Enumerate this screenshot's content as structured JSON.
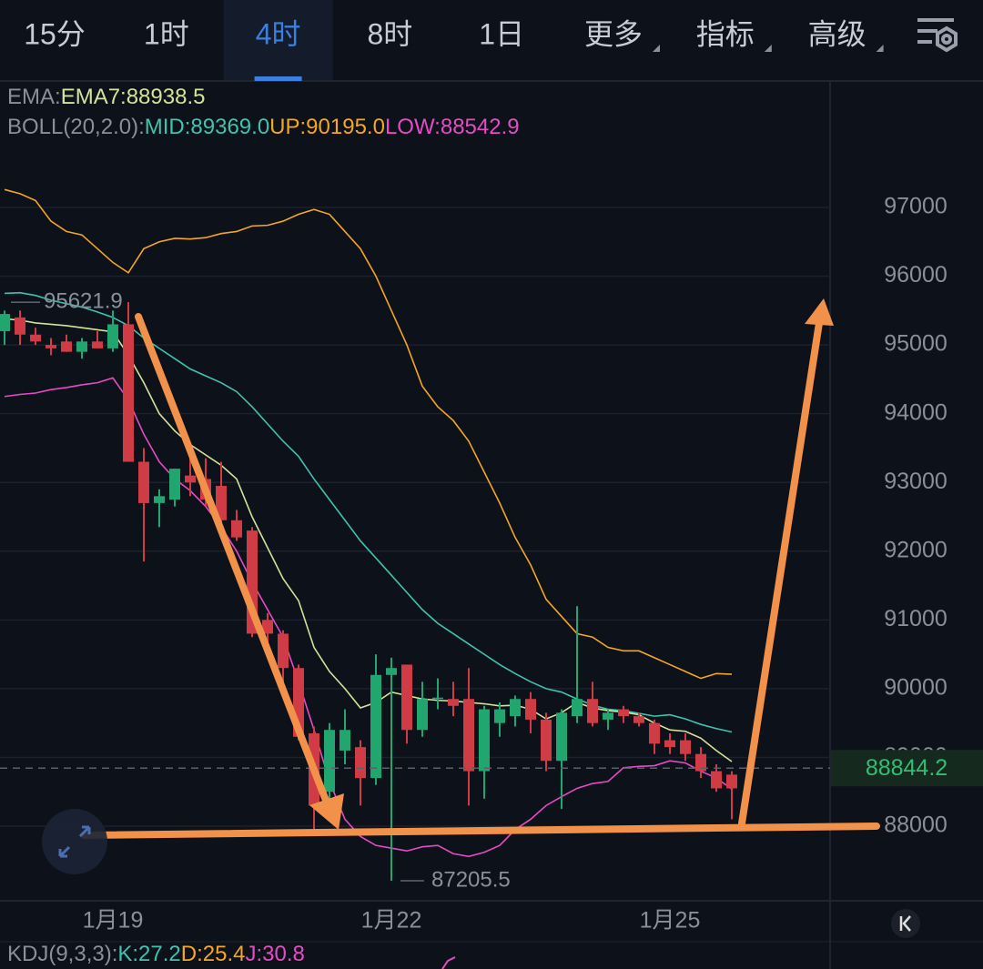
{
  "tabs": [
    {
      "label": "15分"
    },
    {
      "label": "1时"
    },
    {
      "label": "4时",
      "active": true
    },
    {
      "label": "8时"
    },
    {
      "label": "1日"
    },
    {
      "label": "更多",
      "dropdown": true
    },
    {
      "label": "指标",
      "dropdown": true
    },
    {
      "label": "高级",
      "dropdown": true
    }
  ],
  "chart_data": {
    "type": "candlestick",
    "legend": [
      [
        {
          "text": "EMA:",
          "color": "#8a8f9a"
        },
        {
          "text": "EMA7:88938.5",
          "color": "#d6e29a"
        }
      ],
      [
        {
          "text": "BOLL(20,2.0):",
          "color": "#8a8f9a"
        },
        {
          "text": "MID:89369.0",
          "color": "#3fc3ae"
        },
        {
          "text": "UP:90195.0",
          "color": "#f5a623"
        },
        {
          "text": "LOW:88542.9",
          "color": "#e54cc4"
        }
      ]
    ],
    "categories": [
      null,
      null,
      null,
      null,
      null,
      null,
      null,
      "1月19",
      null,
      null,
      null,
      null,
      null,
      null,
      null,
      null,
      null,
      null,
      null,
      null,
      null,
      null,
      null,
      null,
      null,
      "1月22",
      null,
      null,
      null,
      null,
      null,
      null,
      null,
      null,
      null,
      null,
      null,
      null,
      null,
      null,
      null,
      null,
      null,
      "1月25",
      null,
      null,
      null,
      null
    ],
    "open": [
      95200,
      95400,
      95150,
      95000,
      95050,
      94900,
      95050,
      94950,
      95300,
      93300,
      92700,
      92750,
      93100,
      93050,
      92950,
      92450,
      92300,
      91000,
      90800,
      90300,
      89350,
      88500,
      89100,
      89150,
      88700,
      90200,
      90350,
      89400,
      89850,
      89850,
      89850,
      88800,
      89500,
      89600,
      89850,
      89550,
      88950,
      89600,
      89850,
      89550,
      89700,
      89600,
      89500,
      89250,
      89250,
      89050,
      88800,
      88750
    ],
    "high": [
      95500,
      95500,
      95250,
      95100,
      95150,
      95100,
      95200,
      95500,
      95621.9,
      93500,
      92900,
      93200,
      93400,
      93350,
      93300,
      92600,
      92350,
      91100,
      90850,
      90350,
      89450,
      89500,
      89700,
      89250,
      90500,
      90450,
      90350,
      90100,
      90150,
      90100,
      90300,
      89750,
      89800,
      89900,
      89950,
      89650,
      89700,
      91200,
      90100,
      89700,
      89750,
      89650,
      89550,
      89350,
      89350,
      89150,
      88900,
      88800
    ],
    "low": [
      95000,
      95000,
      95000,
      94850,
      94900,
      94800,
      94950,
      94900,
      93300,
      91850,
      92350,
      92650,
      92800,
      92650,
      92300,
      92150,
      90750,
      90500,
      90100,
      89250,
      87900,
      88300,
      88900,
      88300,
      88600,
      87205.5,
      89200,
      89300,
      89700,
      89600,
      88300,
      88400,
      89300,
      89450,
      89350,
      88800,
      88250,
      89500,
      89450,
      89400,
      89500,
      89450,
      89050,
      89050,
      88950,
      88700,
      88500,
      88100
    ],
    "close": [
      95450,
      95150,
      95050,
      94950,
      94900,
      95050,
      94950,
      95300,
      93300,
      92700,
      92800,
      93200,
      93000,
      92750,
      92450,
      92200,
      90800,
      90800,
      90300,
      89300,
      88300,
      89400,
      89400,
      88700,
      90200,
      90300,
      89400,
      89850,
      89870,
      89750,
      88800,
      89700,
      89700,
      89850,
      89550,
      88950,
      89650,
      89850,
      89500,
      89650,
      89600,
      89500,
      89200,
      89150,
      89050,
      88800,
      88550,
      88550
    ],
    "up_color": "#21a66f",
    "down_color": "#d03c46",
    "series": [
      {
        "color": "#f5a623",
        "values": [
          97260,
          97200,
          97100,
          96800,
          96650,
          96600,
          96400,
          96200,
          96050,
          96400,
          96500,
          96550,
          96540,
          96560,
          96620,
          96650,
          96730,
          96740,
          96800,
          96900,
          96970,
          96900,
          96650,
          96400,
          96000,
          95500,
          95000,
          94400,
          94100,
          93900,
          93600,
          93150,
          92700,
          92200,
          91800,
          91300,
          91050,
          90800,
          90750,
          90600,
          90550,
          90550,
          90450,
          90350,
          90250,
          90150,
          90220,
          90210
        ]
      },
      {
        "color": "#3fc3ae",
        "values": [
          95750,
          95760,
          95720,
          95650,
          95600,
          95550,
          95480,
          95400,
          95280,
          95100,
          94950,
          94800,
          94650,
          94550,
          94450,
          94320,
          94100,
          93850,
          93600,
          93380,
          93050,
          92750,
          92450,
          92150,
          91900,
          91650,
          91400,
          91150,
          90950,
          90800,
          90650,
          90500,
          90350,
          90220,
          90100,
          90000,
          89950,
          89850,
          89760,
          89700,
          89680,
          89640,
          89600,
          89620,
          89560,
          89480,
          89420,
          89370
        ]
      },
      {
        "color": "#e54cc4",
        "values": [
          94250,
          94280,
          94300,
          94350,
          94380,
          94420,
          94450,
          94520,
          94200,
          93700,
          93300,
          93050,
          92880,
          92650,
          92350,
          92000,
          91550,
          91150,
          90750,
          90100,
          89400,
          88650,
          88100,
          87850,
          87720,
          87680,
          87640,
          87700,
          87720,
          87600,
          87560,
          87620,
          87720,
          87950,
          88100,
          88300,
          88430,
          88550,
          88620,
          88650,
          88850,
          88870,
          88880,
          88950,
          88920,
          88800,
          88700,
          88540
        ]
      },
      {
        "color": "#d6e29a",
        "values": [
          95380,
          95360,
          95320,
          95300,
          95280,
          95250,
          95220,
          95190,
          94850,
          94450,
          94000,
          93750,
          93550,
          93400,
          93250,
          93050,
          92500,
          92050,
          91600,
          91280,
          90600,
          90250,
          90000,
          89720,
          89800,
          89950,
          89900,
          89850,
          89830,
          89820,
          89800,
          89780,
          89750,
          89760,
          89700,
          89560,
          89650,
          89800,
          89720,
          89680,
          89660,
          89620,
          89500,
          89400,
          89380,
          89280,
          89100,
          88940
        ]
      }
    ],
    "ylim": [
      86915,
      98826
    ],
    "yticks": [
      88000,
      89000,
      90000,
      91000,
      92000,
      93000,
      94000,
      95000,
      96000,
      97000
    ],
    "grid": true,
    "high_marker": 95621.9,
    "low_marker": 87205.5,
    "last_price": 88844.2,
    "kdj": [
      {
        "text": "KDJ(9,3,3):",
        "color": "#8a8f9a"
      },
      {
        "text": "K:27.2",
        "color": "#3fc3ae"
      },
      {
        "text": "D:25.4",
        "color": "#f5a623"
      },
      {
        "text": "J:30.8",
        "color": "#e54cc4"
      }
    ]
  }
}
